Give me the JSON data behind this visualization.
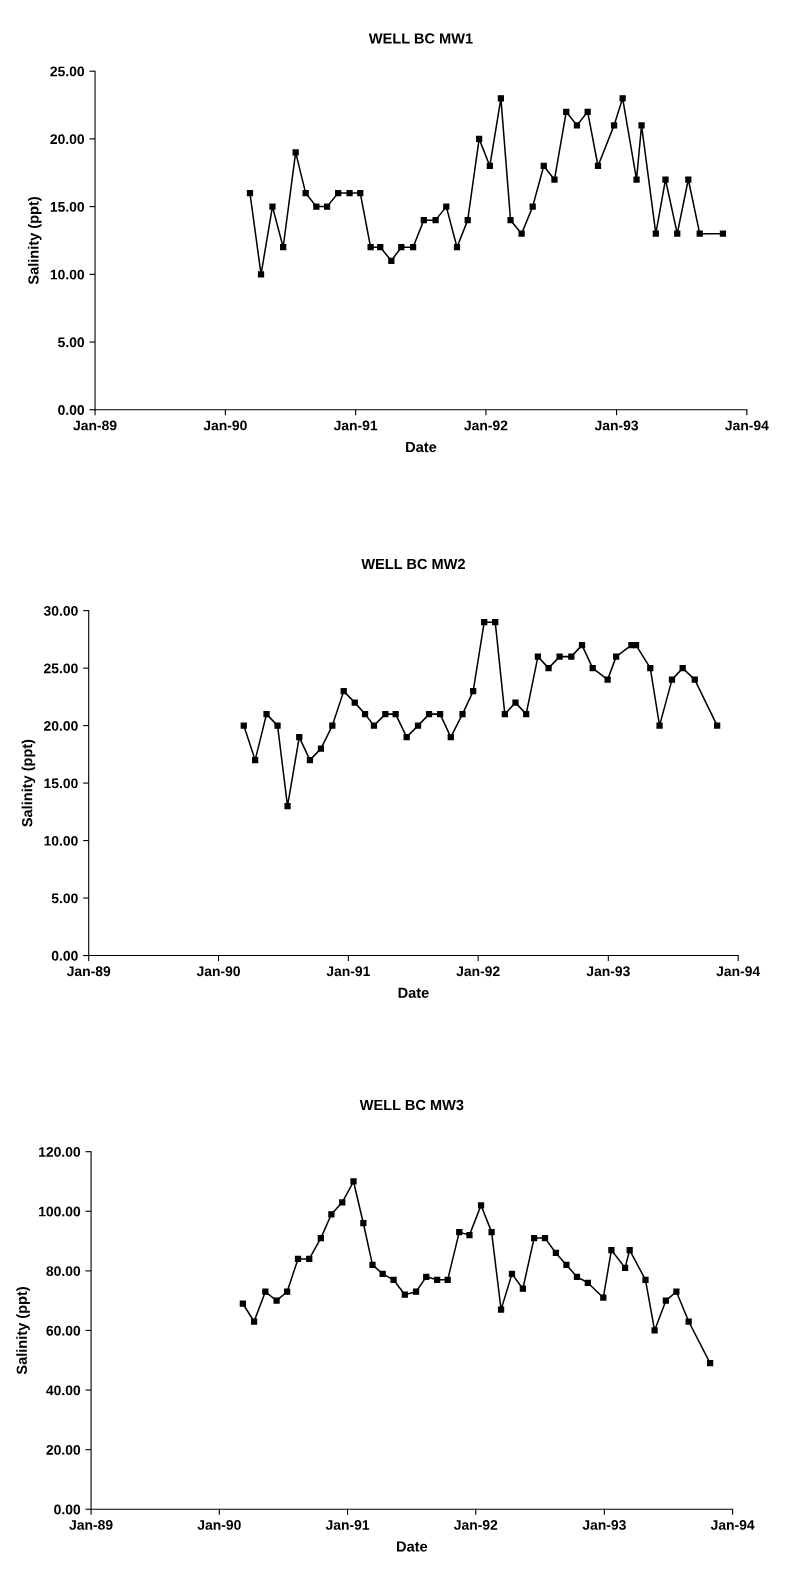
{
  "chart_data": [
    {
      "type": "line",
      "title": "WELL BC MW1",
      "xlabel": "Date",
      "ylabel": "Salinity (ppt)",
      "marker": "square",
      "line_style": "solid",
      "xlim": [
        "1989-01-01",
        "1994-01-01"
      ],
      "xticks": [
        {
          "value": "1989-01-01",
          "label": "Jan-89"
        },
        {
          "value": "1990-01-01",
          "label": "Jan-90"
        },
        {
          "value": "1991-01-01",
          "label": "Jan-91"
        },
        {
          "value": "1992-01-01",
          "label": "Jan-92"
        },
        {
          "value": "1993-01-01",
          "label": "Jan-93"
        },
        {
          "value": "1994-01-01",
          "label": "Jan-94"
        }
      ],
      "ylim": [
        0,
        25
      ],
      "yticks": [
        {
          "value": 0,
          "label": "0.00"
        },
        {
          "value": 5,
          "label": "5.00"
        },
        {
          "value": 10,
          "label": "10.00"
        },
        {
          "value": 15,
          "label": "15.00"
        },
        {
          "value": 20,
          "label": "20.00"
        },
        {
          "value": 25,
          "label": "25.00"
        }
      ],
      "x": [
        "1990-03-11",
        "1990-04-11",
        "1990-05-13",
        "1990-06-12",
        "1990-07-17",
        "1990-08-14",
        "1990-09-13",
        "1990-10-13",
        "1990-11-13",
        "1990-12-15",
        "1991-01-14",
        "1991-02-12",
        "1991-03-11",
        "1991-04-11",
        "1991-05-09",
        "1991-06-11",
        "1991-07-11",
        "1991-08-13",
        "1991-09-12",
        "1991-10-12",
        "1991-11-11",
        "1991-12-13",
        "1992-01-12",
        "1992-02-12",
        "1992-03-10",
        "1992-04-10",
        "1992-05-11",
        "1992-06-11",
        "1992-07-11",
        "1992-08-13",
        "1992-09-12",
        "1992-10-12",
        "1992-11-10",
        "1992-12-25",
        "1993-01-18",
        "1993-02-26",
        "1993-03-12",
        "1993-04-21",
        "1993-05-18",
        "1993-06-20",
        "1993-07-21",
        "1993-08-22",
        "1993-10-26"
      ],
      "series": [
        {
          "color": "#000000",
          "values": [
            16,
            10,
            15,
            12,
            19,
            16,
            15,
            15,
            16,
            16,
            16,
            12,
            12,
            11,
            12,
            12,
            14,
            14,
            15,
            12,
            14,
            20,
            18,
            23,
            14,
            13,
            15,
            18,
            17,
            22,
            21,
            22,
            18,
            21,
            23,
            17,
            21,
            13,
            17,
            13,
            17,
            13,
            13
          ]
        }
      ]
    },
    {
      "type": "line",
      "title": "WELL BC MW2",
      "xlabel": "Date",
      "ylabel": "Salinity (ppt)",
      "marker": "square",
      "line_style": "solid",
      "xlim": [
        "1989-01-01",
        "1994-01-01"
      ],
      "xticks": [
        {
          "value": "1989-01-01",
          "label": "Jan-89"
        },
        {
          "value": "1990-01-01",
          "label": "Jan-90"
        },
        {
          "value": "1991-01-01",
          "label": "Jan-91"
        },
        {
          "value": "1992-01-01",
          "label": "Jan-92"
        },
        {
          "value": "1993-01-01",
          "label": "Jan-93"
        },
        {
          "value": "1994-01-01",
          "label": "Jan-94"
        }
      ],
      "ylim": [
        0,
        30
      ],
      "yticks": [
        {
          "value": 0,
          "label": "0.00"
        },
        {
          "value": 5,
          "label": "5.00"
        },
        {
          "value": 10,
          "label": "10.00"
        },
        {
          "value": 15,
          "label": "15.00"
        },
        {
          "value": 20,
          "label": "20.00"
        },
        {
          "value": 25,
          "label": "25.00"
        },
        {
          "value": 30,
          "label": "30.00"
        }
      ],
      "x": [
        "1990-03-13",
        "1990-04-14",
        "1990-05-16",
        "1990-06-16",
        "1990-07-14",
        "1990-08-16",
        "1990-09-15",
        "1990-10-16",
        "1990-11-17",
        "1990-12-19",
        "1991-01-19",
        "1991-02-17",
        "1991-03-14",
        "1991-04-15",
        "1991-05-14",
        "1991-06-14",
        "1991-07-16",
        "1991-08-16",
        "1991-09-16",
        "1991-10-16",
        "1991-11-18",
        "1991-12-18",
        "1992-01-18",
        "1992-02-18",
        "1992-03-16",
        "1992-04-15",
        "1992-05-15",
        "1992-06-17",
        "1992-07-17",
        "1992-08-17",
        "1992-09-19",
        "1992-10-19",
        "1992-11-18",
        "1992-12-30",
        "1993-01-23",
        "1993-03-07",
        "1993-03-20",
        "1993-04-29",
        "1993-05-25",
        "1993-06-29",
        "1993-07-29",
        "1993-09-01",
        "1993-11-03"
      ],
      "series": [
        {
          "color": "#000000",
          "values": [
            20,
            17,
            21,
            20,
            13,
            19,
            17,
            18,
            20,
            23,
            22,
            21,
            20,
            21,
            21,
            19,
            20,
            21,
            21,
            19,
            21,
            23,
            29,
            29,
            21,
            22,
            21,
            26,
            25,
            26,
            26,
            27,
            25,
            24,
            26,
            27,
            27,
            25,
            20,
            24,
            25,
            24,
            20
          ]
        }
      ]
    },
    {
      "type": "line",
      "title": "WELL BC MW3",
      "xlabel": "Date",
      "ylabel": "Salinity (ppt)",
      "marker": "square",
      "line_style": "solid",
      "xlim": [
        "1989-01-01",
        "1994-01-01"
      ],
      "xticks": [
        {
          "value": "1989-01-01",
          "label": "Jan-89"
        },
        {
          "value": "1990-01-01",
          "label": "Jan-90"
        },
        {
          "value": "1991-01-01",
          "label": "Jan-91"
        },
        {
          "value": "1992-01-01",
          "label": "Jan-92"
        },
        {
          "value": "1993-01-01",
          "label": "Jan-93"
        },
        {
          "value": "1994-01-01",
          "label": "Jan-94"
        }
      ],
      "ylim": [
        0,
        120
      ],
      "yticks": [
        {
          "value": 0,
          "label": "0.00"
        },
        {
          "value": 20,
          "label": "20.00"
        },
        {
          "value": 40,
          "label": "40.00"
        },
        {
          "value": 60,
          "label": "60.00"
        },
        {
          "value": 80,
          "label": "80.00"
        },
        {
          "value": 100,
          "label": "100.00"
        },
        {
          "value": 120,
          "label": "120.00"
        }
      ],
      "x": [
        "1990-03-09",
        "1990-04-10",
        "1990-05-12",
        "1990-06-13",
        "1990-07-13",
        "1990-08-13",
        "1990-09-14",
        "1990-10-17",
        "1990-11-16",
        "1990-12-17",
        "1991-01-18",
        "1991-02-15",
        "1991-03-13",
        "1991-04-11",
        "1991-05-12",
        "1991-06-13",
        "1991-07-15",
        "1991-08-13",
        "1991-09-13",
        "1991-10-13",
        "1991-11-15",
        "1991-12-14",
        "1992-01-16",
        "1992-02-15",
        "1992-03-13",
        "1992-04-13",
        "1992-05-14",
        "1992-06-15",
        "1992-07-16",
        "1992-08-16",
        "1992-09-15",
        "1992-10-15",
        "1992-11-15",
        "1992-12-29",
        "1993-01-21",
        "1993-03-01",
        "1993-03-14",
        "1993-04-28",
        "1993-05-24",
        "1993-06-25",
        "1993-07-25",
        "1993-08-29",
        "1993-10-29"
      ],
      "series": [
        {
          "color": "#000000",
          "values": [
            69,
            63,
            73,
            70,
            73,
            84,
            84,
            91,
            99,
            103,
            110,
            96,
            82,
            79,
            77,
            72,
            73,
            78,
            77,
            77,
            93,
            92,
            102,
            93,
            67,
            79,
            74,
            91,
            91,
            86,
            82,
            78,
            76,
            71,
            87,
            81,
            87,
            77,
            60,
            70,
            73,
            63,
            49
          ]
        }
      ]
    }
  ]
}
